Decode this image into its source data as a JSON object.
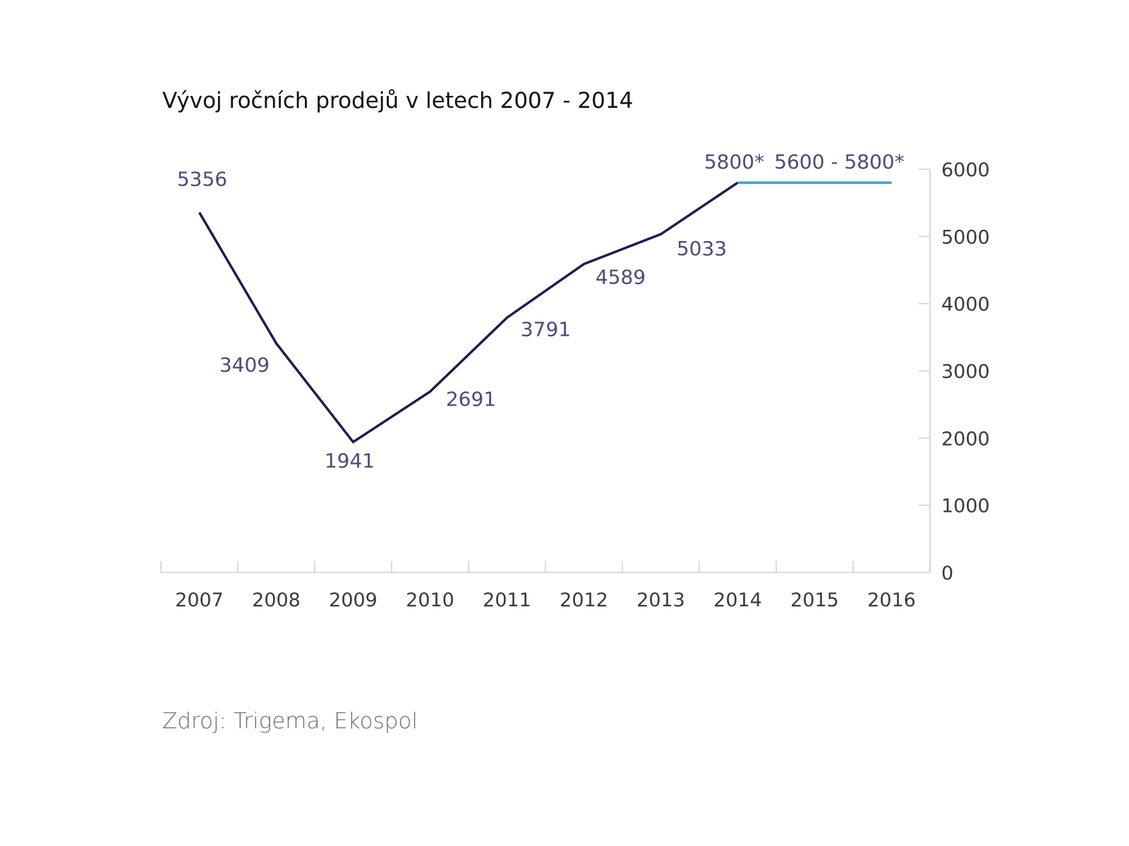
{
  "chart_data": {
    "type": "line",
    "title": "Vývoj ročních prodejů v letech 2007 - 2014",
    "source": "Zdroj: Trigema, Ekospol",
    "categories": [
      "2007",
      "2008",
      "2009",
      "2010",
      "2011",
      "2012",
      "2013",
      "2014",
      "2015",
      "2016"
    ],
    "series": [
      {
        "name": "actual",
        "color": "#1e1a4f",
        "x": [
          "2007",
          "2008",
          "2009",
          "2010",
          "2011",
          "2012",
          "2013",
          "2014"
        ],
        "values": [
          5356,
          3409,
          1941,
          2691,
          3791,
          4589,
          5033,
          5800
        ],
        "labels": [
          "5356",
          "3409",
          "1941",
          "2691",
          "3791",
          "4589",
          "5033",
          "5800*"
        ]
      },
      {
        "name": "forecast",
        "color": "#3ea1dc",
        "x": [
          "2014",
          "2016"
        ],
        "values": [
          5800,
          5800
        ],
        "label": "5600 - 5800*"
      }
    ],
    "yaxis": {
      "side": "right",
      "ylim": [
        0,
        6000
      ],
      "ticks": [
        0,
        1000,
        2000,
        3000,
        4000,
        5000,
        6000
      ],
      "tick_labels": [
        "0",
        "1000",
        "2000",
        "3000",
        "4000",
        "5000",
        "6000"
      ]
    },
    "xlabel": "",
    "ylabel": "",
    "grid": false
  }
}
